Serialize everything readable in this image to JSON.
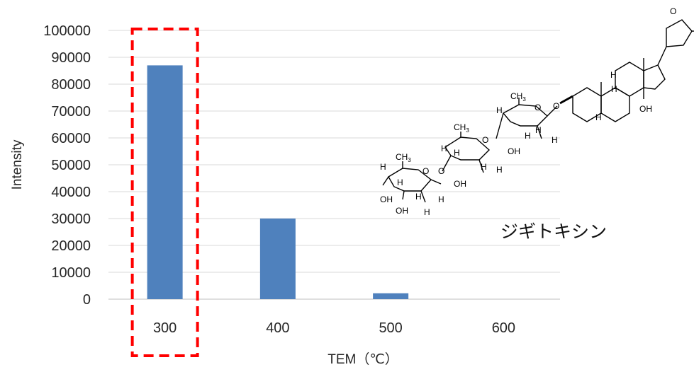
{
  "chart_data": {
    "type": "bar",
    "categories": [
      "300",
      "400",
      "500",
      "600"
    ],
    "values": [
      87000,
      30000,
      2200,
      0
    ],
    "xlabel": "TEM（℃）",
    "ylabel": "Intensity",
    "ylim": [
      0,
      100000
    ],
    "yticks": [
      "100000",
      "90000",
      "80000",
      "70000",
      "60000",
      "50000",
      "40000",
      "30000",
      "20000",
      "10000",
      "0"
    ],
    "ytick_values": [
      100000,
      90000,
      80000,
      70000,
      60000,
      50000,
      40000,
      30000,
      20000,
      10000,
      0
    ],
    "grid": true,
    "bar_color": "#4f81bd",
    "highlight": {
      "category": "300",
      "style": "red dashed box",
      "color": "#ff0000"
    }
  },
  "annotation": {
    "compound_name": "ジギトキシン",
    "structure_labels": {
      "h": "H",
      "oh": "OH",
      "o": "O",
      "ch3": "CH",
      "sub3": "3"
    }
  }
}
